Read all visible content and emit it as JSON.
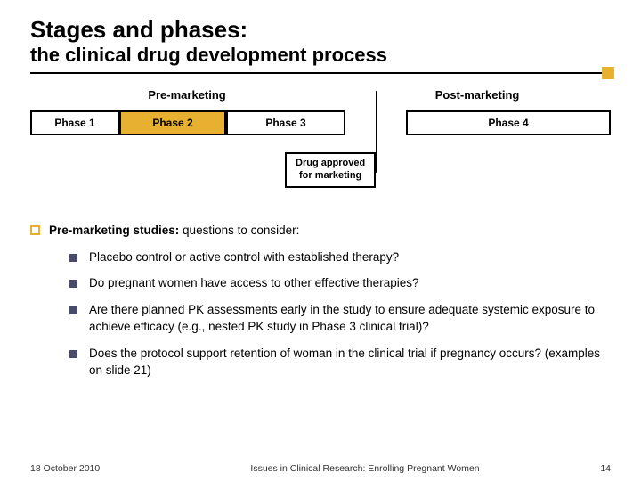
{
  "title": {
    "main": "Stages and phases:",
    "sub": "the clinical drug development process"
  },
  "diagram": {
    "section_pre": "Pre-marketing",
    "section_post": "Post-marketing",
    "phases": {
      "p1": "Phase 1",
      "p2": "Phase 2",
      "p3": "Phase 3",
      "p4": "Phase 4"
    },
    "approved_line1": "Drug approved",
    "approved_line2": "for marketing",
    "colors": {
      "highlight": "#e8b030",
      "border": "#000000",
      "bullet_square": "#4a4a6a"
    }
  },
  "content": {
    "lead_bold": "Pre-marketing studies:",
    "lead_rest": "  questions to consider:",
    "questions": [
      "Placebo control or active control with established therapy?",
      "Do pregnant women have access to other effective therapies?",
      "Are there planned PK assessments early in the study to ensure adequate systemic exposure to achieve efficacy (e.g., nested PK study in Phase 3 clinical trial)?",
      "Does the protocol support retention of woman in the clinical trial if pregnancy occurs?  (examples on slide 21)"
    ]
  },
  "footer": {
    "date": "18 October 2010",
    "center": "Issues in Clinical Research: Enrolling Pregnant Women",
    "page": "14"
  }
}
